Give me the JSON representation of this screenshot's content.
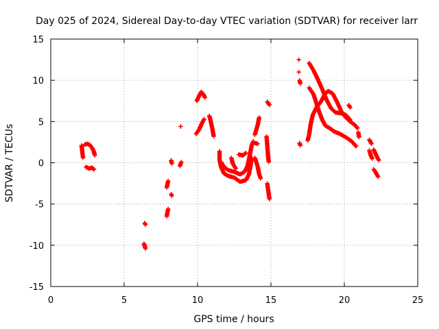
{
  "chart_data": {
    "type": "scatter",
    "title": "Day 025 of 2024, Sidereal Day-to-day VTEC variation (SDTVAR) for receiver larr",
    "xlabel": "GPS time / hours",
    "ylabel": "SDTVAR / TECUs",
    "xlim": [
      0,
      25
    ],
    "ylim": [
      -15,
      15
    ],
    "xticks": [
      "0",
      "5",
      "10",
      "15",
      "20",
      "25"
    ],
    "yticks": [
      "-15",
      "-10",
      "-5",
      "0",
      "5",
      "10",
      "15"
    ],
    "grid": true,
    "marker": "plus",
    "color": "#ff0000",
    "segments": [
      [
        [
          2.1,
          2.1
        ],
        [
          2.15,
          1.3
        ],
        [
          2.2,
          0.6
        ]
      ],
      [
        [
          2.3,
          2.2
        ],
        [
          2.5,
          2.3
        ],
        [
          2.7,
          2.1
        ],
        [
          2.85,
          1.7
        ],
        [
          2.95,
          1.3
        ],
        [
          3.0,
          0.9
        ]
      ],
      [
        [
          2.4,
          -0.5
        ],
        [
          2.6,
          -0.7
        ],
        [
          2.8,
          -0.6
        ],
        [
          2.95,
          -0.8
        ]
      ],
      [
        [
          6.4,
          -7.3
        ],
        [
          6.45,
          -7.5
        ]
      ],
      [
        [
          6.35,
          -9.8
        ],
        [
          6.4,
          -10.1
        ],
        [
          6.45,
          -10.4
        ]
      ],
      [
        [
          7.9,
          -6.5
        ],
        [
          7.95,
          -6.0
        ],
        [
          8.0,
          -5.6
        ]
      ],
      [
        [
          7.9,
          -3.0
        ],
        [
          7.95,
          -2.6
        ],
        [
          8.0,
          -2.2
        ]
      ],
      [
        [
          8.2,
          -3.8
        ],
        [
          8.25,
          -4.0
        ]
      ],
      [
        [
          8.2,
          0.3
        ],
        [
          8.25,
          -0.1
        ]
      ],
      [
        [
          8.8,
          -0.4
        ],
        [
          8.85,
          -0.1
        ],
        [
          8.9,
          0.1
        ]
      ],
      [
        [
          8.85,
          4.4
        ]
      ],
      [
        [
          9.9,
          3.5
        ],
        [
          10.1,
          4.0
        ],
        [
          10.3,
          4.8
        ],
        [
          10.45,
          5.3
        ]
      ],
      [
        [
          9.95,
          7.5
        ],
        [
          10.1,
          8.1
        ],
        [
          10.25,
          8.6
        ],
        [
          10.4,
          8.3
        ],
        [
          10.5,
          7.9
        ]
      ],
      [
        [
          10.8,
          5.7
        ],
        [
          10.9,
          5.0
        ],
        [
          11.0,
          4.2
        ],
        [
          11.1,
          3.2
        ]
      ],
      [
        [
          11.5,
          1.4
        ],
        [
          11.5,
          0.3
        ],
        [
          11.6,
          -0.5
        ],
        [
          11.8,
          -1.3
        ],
        [
          12.1,
          -1.6
        ],
        [
          12.5,
          -1.8
        ],
        [
          12.9,
          -2.3
        ],
        [
          13.3,
          -2.1
        ],
        [
          13.5,
          -1.4
        ],
        [
          13.6,
          -0.4
        ],
        [
          13.7,
          0.6
        ]
      ],
      [
        [
          11.6,
          0.1
        ],
        [
          11.8,
          -0.5
        ],
        [
          12.1,
          -0.9
        ],
        [
          12.5,
          -1.1
        ],
        [
          12.9,
          -1.4
        ],
        [
          13.2,
          -1.1
        ],
        [
          13.4,
          -0.4
        ],
        [
          13.5,
          0.4
        ],
        [
          13.6,
          1.3
        ],
        [
          13.7,
          2.2
        ],
        [
          13.8,
          2.6
        ]
      ],
      [
        [
          12.3,
          0.6
        ],
        [
          12.4,
          -0.1
        ],
        [
          12.6,
          -0.7
        ]
      ],
      [
        [
          12.8,
          1.0
        ],
        [
          13.1,
          0.9
        ],
        [
          13.3,
          1.2
        ]
      ],
      [
        [
          13.9,
          3.4
        ],
        [
          14.1,
          4.6
        ],
        [
          14.2,
          5.5
        ]
      ],
      [
        [
          13.9,
          2.4
        ],
        [
          14.1,
          2.3
        ]
      ],
      [
        [
          13.9,
          0.6
        ],
        [
          14.0,
          0.1
        ],
        [
          14.1,
          -0.5
        ],
        [
          14.2,
          -1.4
        ],
        [
          14.3,
          -1.9
        ]
      ],
      [
        [
          14.75,
          7.4
        ],
        [
          14.9,
          7.0
        ]
      ],
      [
        [
          14.7,
          3.2
        ],
        [
          14.75,
          2.1
        ],
        [
          14.8,
          0.9
        ],
        [
          14.85,
          0.1
        ]
      ],
      [
        [
          14.75,
          -2.5
        ],
        [
          14.8,
          -3.2
        ],
        [
          14.85,
          -3.8
        ],
        [
          14.9,
          -4.4
        ]
      ],
      [
        [
          16.9,
          12.5
        ]
      ],
      [
        [
          16.9,
          11.0
        ]
      ],
      [
        [
          16.95,
          10.0
        ],
        [
          17.0,
          9.6
        ]
      ],
      [
        [
          16.95,
          2.4
        ],
        [
          17.0,
          2.1
        ]
      ],
      [
        [
          17.5,
          2.7
        ],
        [
          17.6,
          3.4
        ],
        [
          17.7,
          4.6
        ],
        [
          17.85,
          5.8
        ],
        [
          18.1,
          6.7
        ],
        [
          18.4,
          7.4
        ],
        [
          18.7,
          8.4
        ],
        [
          18.9,
          8.7
        ],
        [
          19.2,
          8.4
        ],
        [
          19.5,
          7.4
        ],
        [
          19.8,
          6.2
        ],
        [
          20.1,
          5.5
        ],
        [
          20.4,
          5.0
        ],
        [
          20.7,
          4.6
        ],
        [
          20.9,
          4.2
        ]
      ],
      [
        [
          17.6,
          9.1
        ],
        [
          17.9,
          8.3
        ],
        [
          18.1,
          7.2
        ],
        [
          18.3,
          6.1
        ],
        [
          18.5,
          5.2
        ],
        [
          18.7,
          4.5
        ],
        [
          19.0,
          4.2
        ],
        [
          19.3,
          3.8
        ],
        [
          19.7,
          3.5
        ],
        [
          20.1,
          3.1
        ],
        [
          20.5,
          2.6
        ],
        [
          20.8,
          2.0
        ]
      ],
      [
        [
          17.6,
          12.1
        ],
        [
          17.9,
          11.2
        ],
        [
          18.2,
          10.1
        ],
        [
          18.5,
          8.9
        ],
        [
          18.8,
          7.6
        ],
        [
          19.1,
          6.6
        ],
        [
          19.4,
          6.1
        ],
        [
          19.8,
          6.0
        ],
        [
          20.1,
          5.8
        ],
        [
          20.4,
          5.2
        ]
      ],
      [
        [
          20.3,
          7.0
        ],
        [
          20.4,
          6.7
        ]
      ],
      [
        [
          20.95,
          3.7
        ],
        [
          21.0,
          3.1
        ]
      ],
      [
        [
          21.7,
          2.8
        ],
        [
          21.85,
          2.3
        ]
      ],
      [
        [
          21.7,
          1.5
        ],
        [
          21.8,
          0.9
        ],
        [
          21.9,
          0.5
        ]
      ],
      [
        [
          22.0,
          1.6
        ],
        [
          22.2,
          0.8
        ],
        [
          22.35,
          0.3
        ]
      ],
      [
        [
          22.0,
          -0.8
        ],
        [
          22.15,
          -1.2
        ],
        [
          22.3,
          -1.7
        ]
      ]
    ]
  }
}
